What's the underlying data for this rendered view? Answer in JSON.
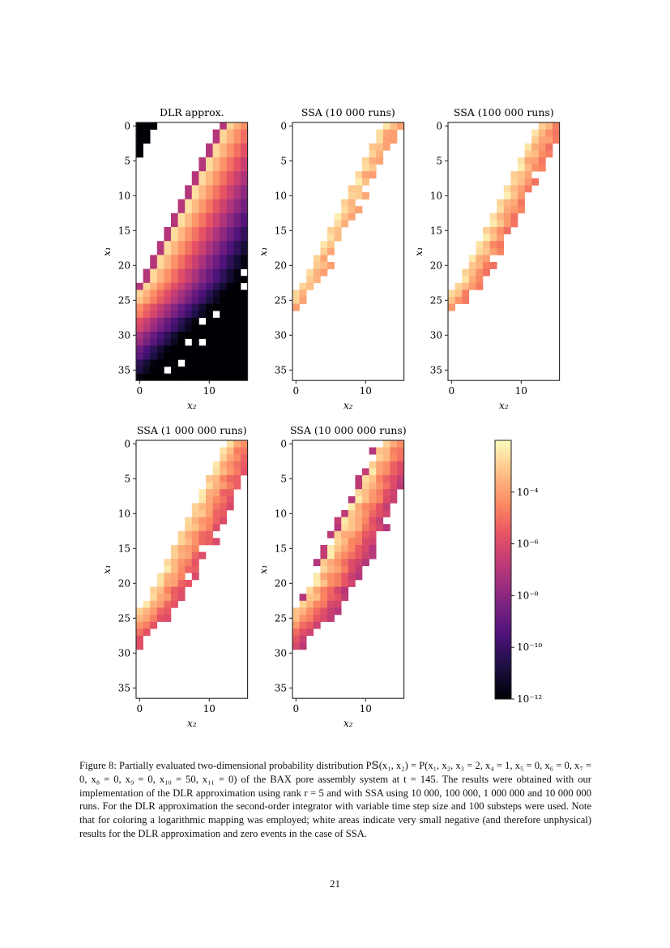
{
  "chart_data": {
    "type": "heatmap",
    "xlabel": "x₂",
    "ylabel": "x₁",
    "x_range": [
      0,
      15
    ],
    "y_range": [
      0,
      36
    ],
    "x_ticks": [
      "0",
      "10"
    ],
    "y_ticks": [
      "0",
      "5",
      "10",
      "15",
      "20",
      "25",
      "30",
      "35"
    ],
    "color_scale": "log",
    "colormap": "magma",
    "color_range": [
      1e-12,
      0.01
    ],
    "colorbar_ticks": [
      "10⁻¹²",
      "10⁻¹⁰",
      "10⁻⁸",
      "10⁻⁶",
      "10⁻⁴"
    ],
    "panels": [
      {
        "title": "DLR approx.",
        "method": "DLR",
        "runs": null
      },
      {
        "title": "SSA (10 000 runs)",
        "method": "SSA",
        "runs": 10000
      },
      {
        "title": "SSA (100 000 runs)",
        "method": "SSA",
        "runs": 100000
      },
      {
        "title": "SSA (1 000 000 runs)",
        "method": "SSA",
        "runs": 1000000
      },
      {
        "title": "SSA (10 000 000 runs)",
        "method": "SSA",
        "runs": 10000000
      }
    ],
    "white_color_meaning": "white"
  },
  "caption": "Figure 8: Partially evaluated two-dimensional probability distribution P𝕊(x₁, x₂) = P(x₁, x₂, x₃ = 2, x₄ = 1, x₅ = 0, x₆ = 0, x₇ = 0, x₈ = 0, x₉ = 0, x₁₀ = 50, x₁₁ = 0) of the BAX pore assembly system at t = 145. The results were obtained with our implementation of the DLR approximation using rank r = 5 and with SSA using 10 000, 100 000, 1 000 000 and 10 000 000 runs. For the DLR approximation the second-order integrator with variable time step size and 100 substeps were used. Note that for coloring a logarithmic mapping was employed; white areas indicate very small negative (and therefore unphysical) results for the DLR approximation and zero events in the case of SSA.",
  "page_number": "21"
}
